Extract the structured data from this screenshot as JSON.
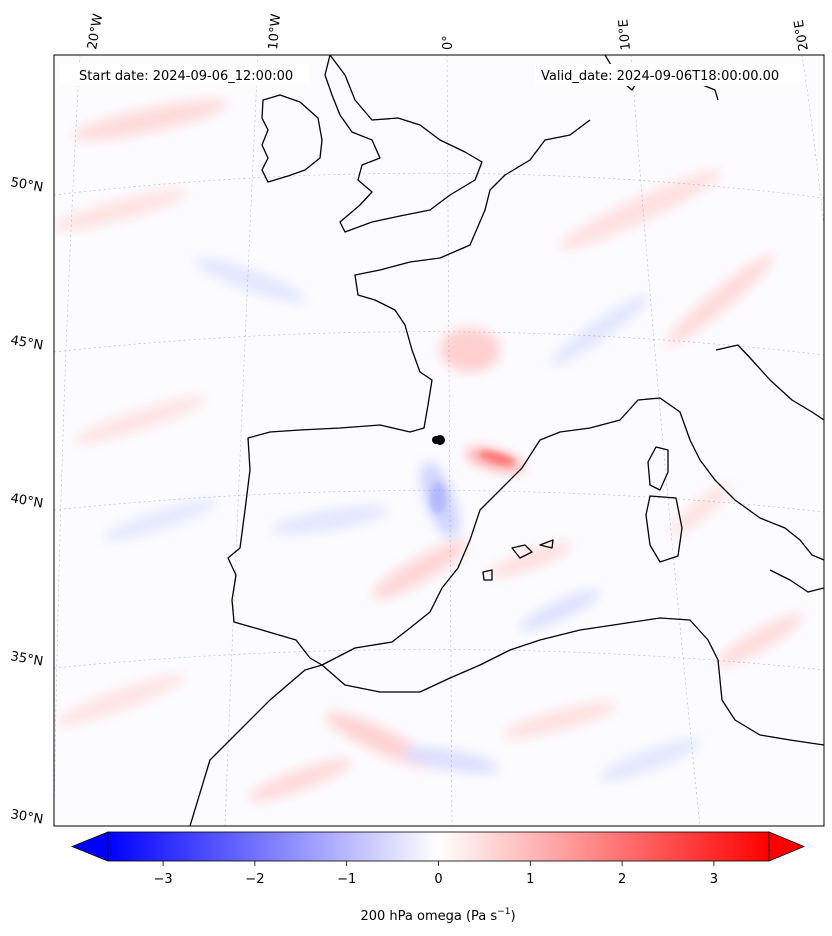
{
  "header": {
    "start_label": "Start date: 2024-09-06_12:00:00",
    "valid_label": "Valid_date: 2024-09-06T18:00:00.00"
  },
  "map": {
    "projection": "lambert-conformal",
    "field": "200 hPa omega",
    "lon_labels": [
      "20°W",
      "10°W",
      "0°",
      "10°E",
      "20°E"
    ],
    "lat_labels": [
      "50°N",
      "45°N",
      "40°N",
      "35°N",
      "30°N"
    ],
    "features": [
      "coastlines",
      "gridlines",
      "filled-contours"
    ],
    "colormap": {
      "negative": "#0000ff",
      "zero": "#ffffff",
      "positive": "#ff0000"
    }
  },
  "colorbar": {
    "ticks": [
      "−3",
      "−2",
      "−1",
      "0",
      "1",
      "2",
      "3"
    ],
    "tick_values": [
      -3,
      -2,
      -1,
      0,
      1,
      2,
      3
    ],
    "range": [
      -3.6,
      3.6
    ],
    "label_main": "200 hPa omega (Pa s",
    "label_sup": "−1",
    "label_end": ")",
    "extend": "both"
  }
}
